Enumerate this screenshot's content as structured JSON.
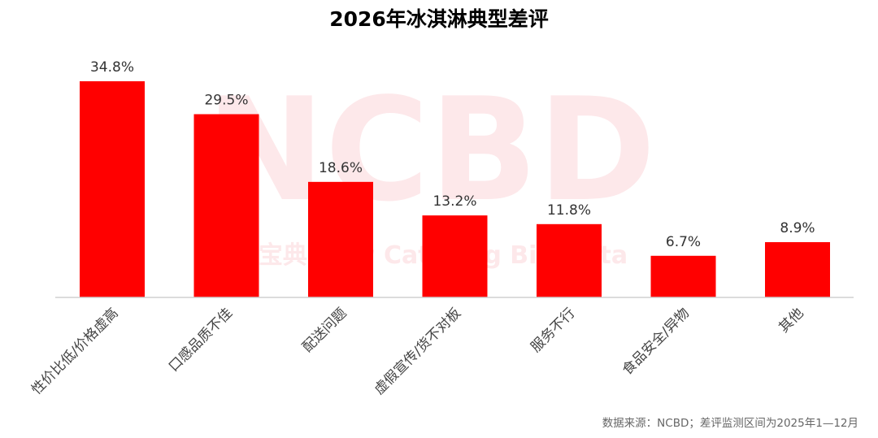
{
  "chart_data": {
    "type": "bar",
    "title": "2026年冰淇淋典型差评",
    "categories": [
      "性价比低/价格虚高",
      "口感品质不佳",
      "配送问题",
      "虚假宣传/货不对板",
      "服务不行",
      "食品安全/异物",
      "其他"
    ],
    "values": [
      34.8,
      29.5,
      18.6,
      13.2,
      11.8,
      6.7,
      8.9
    ],
    "value_labels": [
      "34.8%",
      "29.5%",
      "18.6%",
      "13.2%",
      "11.8%",
      "6.7%",
      "8.9%"
    ],
    "ylim": [
      0,
      35
    ],
    "bar_color": "#ff0000",
    "grid": false,
    "legend": "none",
    "source_note": "数据来源：NCBD；差评监测区间为2025年1—12月"
  },
  "watermark": {
    "text_main": "NCBD",
    "text_sub": "餐宝典 New Catering Big Data",
    "color": "#fde8ea"
  }
}
